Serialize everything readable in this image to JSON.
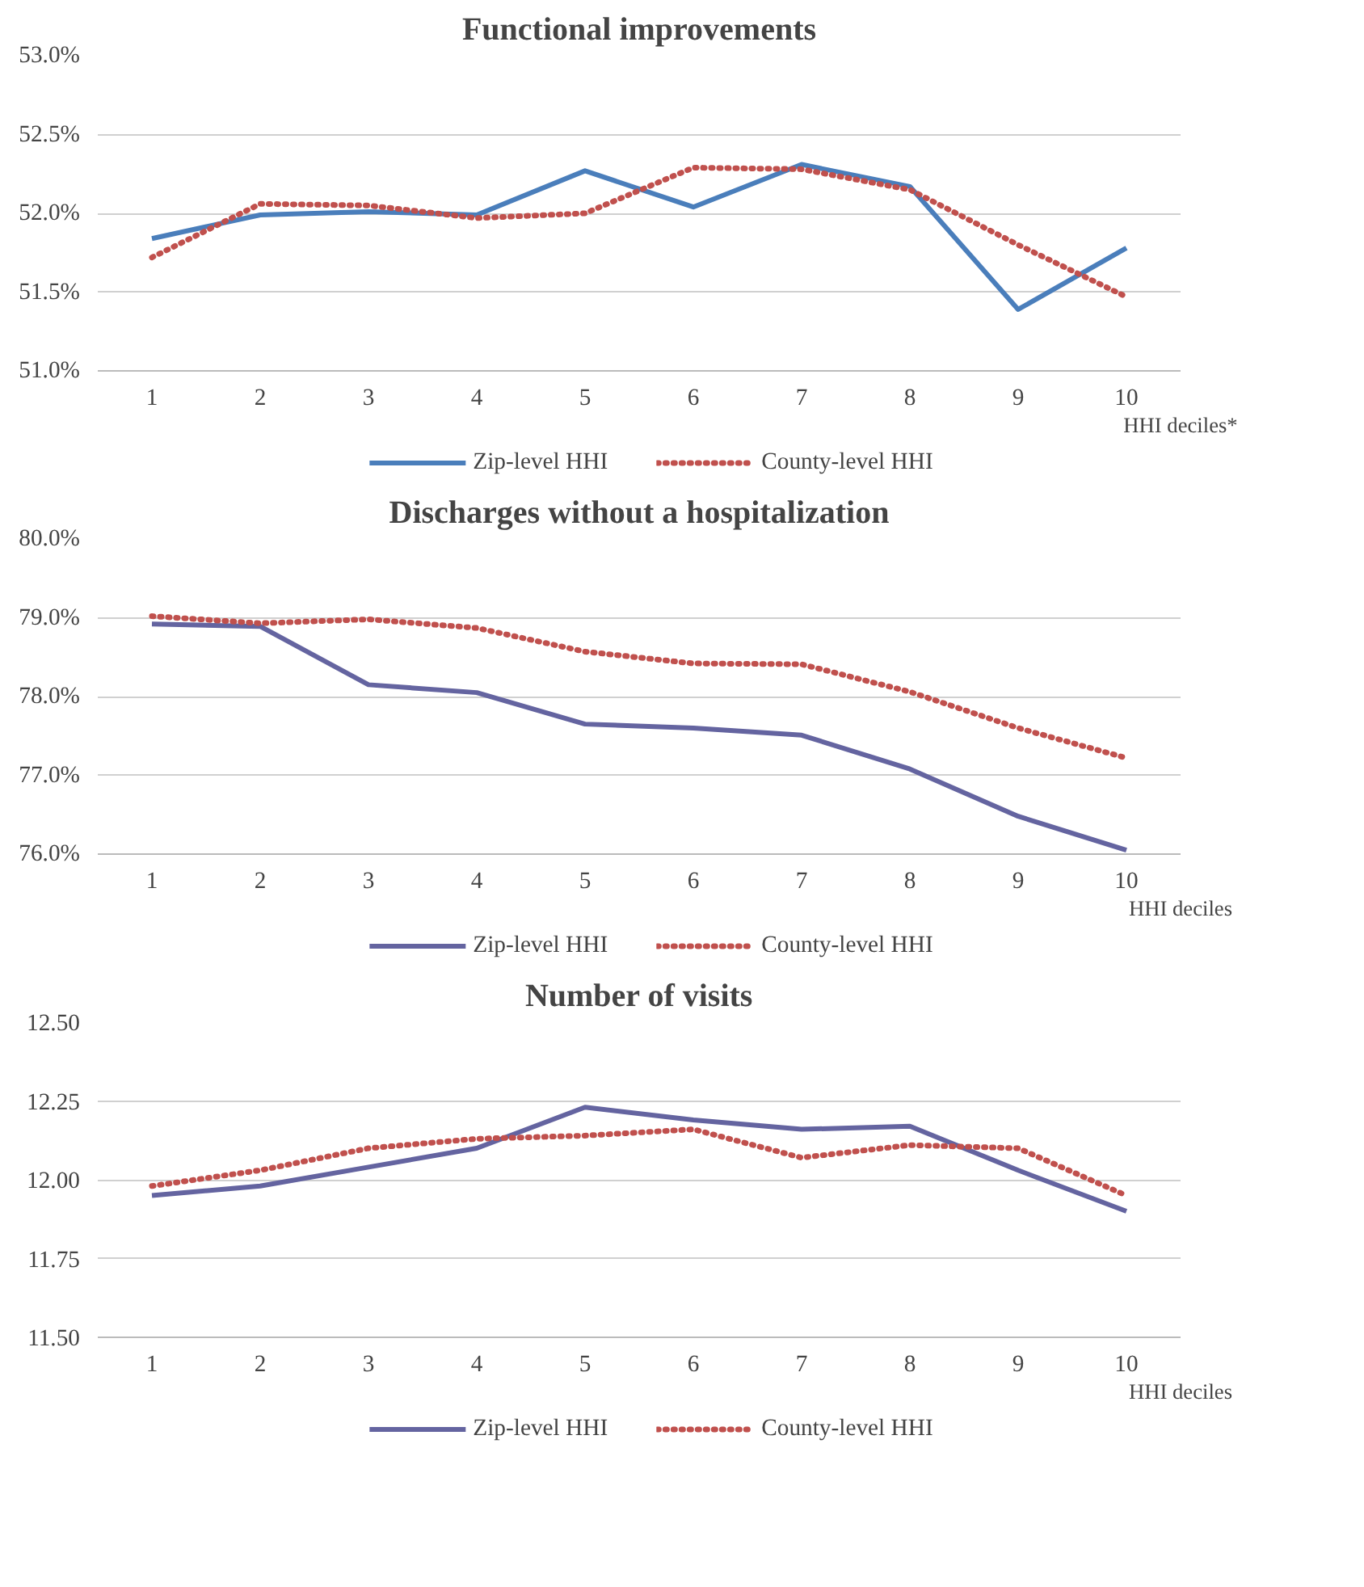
{
  "chart_data": [
    {
      "type": "line",
      "title": "Functional improvements",
      "xlabel": "HHI deciles*",
      "categories": [
        "1",
        "2",
        "3",
        "4",
        "5",
        "6",
        "7",
        "8",
        "9",
        "10"
      ],
      "ylim": [
        51,
        53
      ],
      "yticks": [
        {
          "value": 51,
          "label": "51.0%"
        },
        {
          "value": 51.5,
          "label": "51.5%"
        },
        {
          "value": 52,
          "label": "52.0%"
        },
        {
          "value": 52.5,
          "label": "52.5%"
        },
        {
          "value": 53,
          "label": "53.0%"
        }
      ],
      "grid": "y",
      "legend": "bottom",
      "marker": "none",
      "series": [
        {
          "name": "Zip-level HHI",
          "color": "#4a7ebb",
          "line_style": "solid",
          "values": [
            51.84,
            51.99,
            52.01,
            51.99,
            52.27,
            52.04,
            52.31,
            52.17,
            51.39,
            51.78
          ]
        },
        {
          "name": "County-level HHI",
          "color": "#c0504d",
          "line_style": "dotted",
          "values": [
            51.72,
            52.06,
            52.05,
            51.97,
            52.0,
            52.29,
            52.28,
            52.15,
            51.8,
            51.47
          ]
        }
      ]
    },
    {
      "type": "line",
      "title": "Discharges without a hospitalization",
      "xlabel": "HHI deciles",
      "categories": [
        "1",
        "2",
        "3",
        "4",
        "5",
        "6",
        "7",
        "8",
        "9",
        "10"
      ],
      "ylim": [
        76,
        80
      ],
      "yticks": [
        {
          "value": 76,
          "label": "76.0%"
        },
        {
          "value": 77,
          "label": "77.0%"
        },
        {
          "value": 78,
          "label": "78.0%"
        },
        {
          "value": 79,
          "label": "79.0%"
        },
        {
          "value": 80,
          "label": "80.0%"
        }
      ],
      "grid": "y",
      "legend": "bottom",
      "marker": "none",
      "series": [
        {
          "name": "Zip-level HHI",
          "color": "#6464a0",
          "line_style": "solid",
          "values": [
            78.92,
            78.89,
            78.15,
            78.05,
            77.65,
            77.6,
            77.51,
            77.08,
            76.48,
            76.05
          ]
        },
        {
          "name": "County-level HHI",
          "color": "#c0504d",
          "line_style": "dotted",
          "values": [
            79.02,
            78.93,
            78.98,
            78.87,
            78.57,
            78.42,
            78.41,
            78.06,
            77.6,
            77.22
          ]
        }
      ]
    },
    {
      "type": "line",
      "title": "Number of visits",
      "xlabel": "HHI deciles",
      "categories": [
        "1",
        "2",
        "3",
        "4",
        "5",
        "6",
        "7",
        "8",
        "9",
        "10"
      ],
      "ylim": [
        11.5,
        12.5
      ],
      "yticks": [
        {
          "value": 11.5,
          "label": "11.50"
        },
        {
          "value": 11.75,
          "label": "11.75"
        },
        {
          "value": 12,
          "label": "12.00"
        },
        {
          "value": 12.25,
          "label": "12.25"
        },
        {
          "value": 12.5,
          "label": "12.50"
        }
      ],
      "grid": "y",
      "legend": "bottom",
      "marker": "none",
      "series": [
        {
          "name": "Zip-level HHI",
          "color": "#6464a0",
          "line_style": "solid",
          "values": [
            11.95,
            11.98,
            12.04,
            12.1,
            12.23,
            12.19,
            12.16,
            12.17,
            12.03,
            11.9
          ]
        },
        {
          "name": "County-level HHI",
          "color": "#c0504d",
          "line_style": "dotted",
          "values": [
            11.98,
            12.03,
            12.1,
            12.13,
            12.14,
            12.16,
            12.07,
            12.11,
            12.1,
            11.95
          ]
        }
      ]
    }
  ]
}
